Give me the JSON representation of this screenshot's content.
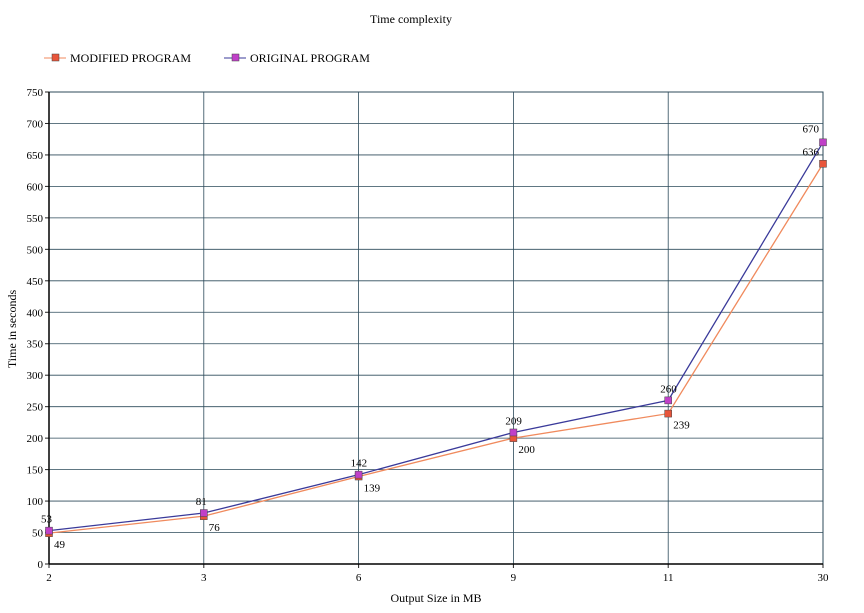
{
  "chart_data": {
    "type": "line",
    "title": "Time complexity",
    "xlabel": "Output Size in MB",
    "ylabel": "Time in seconds",
    "categories": [
      "2",
      "3",
      "6",
      "9",
      "11",
      "30"
    ],
    "ylim": [
      0,
      750
    ],
    "yticks": [
      "0",
      "50",
      "100",
      "150",
      "200",
      "250",
      "300",
      "350",
      "400",
      "450",
      "500",
      "550",
      "600",
      "650",
      "700",
      "750"
    ],
    "grid": true,
    "legend_position": "top-left",
    "series": [
      {
        "name": "MODIFIED PROGRAM",
        "values": [
          49,
          76,
          139,
          200,
          239,
          636
        ],
        "color": "#f08a5d",
        "marker": "#e8553a"
      },
      {
        "name": "ORIGINAL PROGRAM",
        "values": [
          53,
          81,
          142,
          209,
          260,
          670
        ],
        "color": "#3a3a9a",
        "marker": "#c040c8"
      }
    ]
  }
}
